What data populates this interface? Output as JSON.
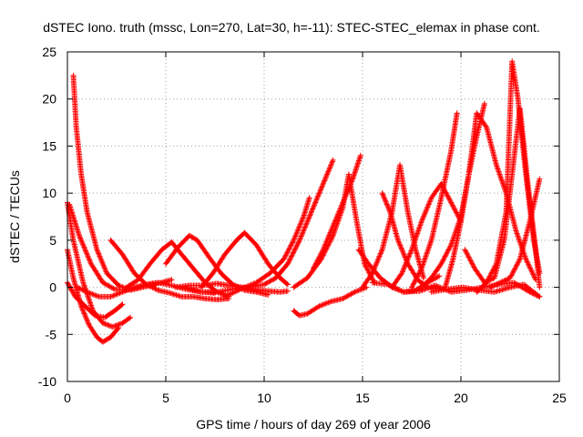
{
  "chart_data": {
    "type": "scatter",
    "title": "dSTEC Iono. truth (mssc, Lon=270, Lat=30, h=-11): STEC-STEC_elemax in phase cont.",
    "xlabel": "GPS time / hours of day 269 of year 2006",
    "ylabel": "dSTEC  / TECUs",
    "xlim": [
      0,
      25
    ],
    "ylim": [
      -10,
      25
    ],
    "xticks": [
      0,
      5,
      10,
      15,
      20,
      25
    ],
    "yticks": [
      -10,
      -5,
      0,
      5,
      10,
      15,
      20,
      25
    ],
    "grid": true,
    "marker": "+",
    "color": "#ff0000",
    "series": [
      {
        "x": [
          0.0,
          0.3,
          0.8,
          1.3,
          1.8,
          2.3,
          2.8,
          3.2
        ],
        "y": [
          9,
          5,
          0.5,
          -2.5,
          -3.8,
          -4.2,
          -3.8,
          -3.2
        ]
      },
      {
        "x": [
          0.0,
          0.3,
          0.7,
          1.1,
          1.5,
          1.8,
          2.2,
          2.6
        ],
        "y": [
          4,
          1,
          -2,
          -4,
          -5.3,
          -5.8,
          -5.3,
          -4.3
        ]
      },
      {
        "x": [
          0.0,
          0.4,
          0.9,
          1.4,
          1.9,
          2.4,
          2.8
        ],
        "y": [
          0.5,
          -1,
          -2,
          -3,
          -3.2,
          -2.5,
          -1.8
        ]
      },
      {
        "x": [
          0.1,
          0.6,
          1.2,
          1.8,
          2.4,
          3.0,
          3.6,
          4.2,
          4.8,
          5.3
        ],
        "y": [
          8.8,
          5.5,
          2.5,
          0.5,
          -0.2,
          -0.3,
          0,
          0.3,
          0.5,
          0.8
        ]
      },
      {
        "x": [
          0.3,
          0.45,
          0.7,
          1.0,
          1.5,
          2.0,
          2.6,
          3.2,
          3.8,
          4.5
        ],
        "y": [
          22.5,
          17,
          12,
          8,
          4,
          1.5,
          0.2,
          -0.3,
          0,
          0.3
        ]
      },
      {
        "x": [
          0.5,
          1.0,
          1.6,
          2.2,
          2.8,
          3.4,
          4.0,
          4.6,
          5.3,
          6.0,
          6.8,
          7.5
        ],
        "y": [
          0,
          -0.5,
          -1,
          -1,
          -0.5,
          0,
          0.3,
          0.5,
          0.2,
          -0.2,
          -0.5,
          -0.6
        ]
      },
      {
        "x": [
          2.2,
          2.8,
          3.4,
          4.0,
          4.6,
          5.2,
          5.8,
          6.4,
          7.0,
          7.6,
          8.2
        ],
        "y": [
          5,
          3.5,
          1.5,
          0.3,
          -0.3,
          -0.6,
          -1,
          -1,
          -1.2,
          -1.3,
          -1.2
        ]
      },
      {
        "x": [
          3.0,
          3.6,
          4.2,
          4.8,
          5.3,
          5.8,
          6.4,
          7.0,
          7.6,
          8.2
        ],
        "y": [
          0,
          0.8,
          2.5,
          4,
          4.8,
          3.5,
          2,
          0.5,
          -0.5,
          -1
        ]
      },
      {
        "x": [
          5.0,
          5.6,
          6.2,
          6.6,
          7.2,
          7.8,
          8.4,
          9.0,
          9.6,
          10.2
        ],
        "y": [
          2.5,
          4.2,
          5.5,
          5,
          3.2,
          1.5,
          0.3,
          -0.3,
          -0.5,
          -0.8
        ]
      },
      {
        "x": [
          5.5,
          6.2,
          6.9,
          7.6,
          8.2,
          8.9,
          9.5,
          10.2,
          10.8,
          11.2
        ],
        "y": [
          0,
          0.2,
          0.2,
          0.4,
          0.2,
          0,
          -0.2,
          -0.4,
          -0.5,
          -0.4
        ]
      },
      {
        "x": [
          6.8,
          7.4,
          8.0,
          8.6,
          9.0,
          9.6,
          10.2,
          10.8,
          11.2
        ],
        "y": [
          0,
          1.5,
          3.5,
          5,
          5.8,
          4.5,
          2.5,
          1,
          0.3
        ]
      },
      {
        "x": [
          6.0,
          6.8,
          7.6,
          8.4,
          9.2,
          10.0,
          10.6,
          11.2,
          11.8,
          12.3,
          12.9,
          13.5
        ],
        "y": [
          0,
          -0.5,
          -0.5,
          -0.2,
          0,
          0.3,
          1,
          2.5,
          5,
          7.5,
          10.5,
          13.5
        ]
      },
      {
        "x": [
          8.0,
          8.8,
          9.6,
          10.3,
          11.0,
          11.5,
          12.0,
          12.3
        ],
        "y": [
          -1,
          -0.2,
          0.5,
          1.5,
          3,
          5,
          7.5,
          9.5
        ]
      },
      {
        "x": [
          11.5,
          11.8,
          12.2,
          12.8,
          13.4,
          14.0,
          14.6,
          15.2
        ],
        "y": [
          -2.5,
          -3,
          -2.8,
          -2,
          -1.5,
          -1.2,
          -0.5,
          0
        ]
      },
      {
        "x": [
          11.5,
          12.2,
          12.9,
          13.5,
          14.0,
          14.3,
          14.7,
          15.1,
          15.6
        ],
        "y": [
          0,
          1,
          3,
          5.5,
          8.5,
          12,
          7,
          2.5,
          0.5
        ]
      },
      {
        "x": [
          12.5,
          13.0,
          13.5,
          14.0,
          14.5,
          14.9
        ],
        "y": [
          2,
          4,
          6.5,
          9,
          11.5,
          14
        ]
      },
      {
        "x": [
          14.8,
          15.3,
          15.9,
          16.5,
          17.1,
          17.7,
          18.3,
          18.9
        ],
        "y": [
          4,
          2.5,
          1,
          0,
          -0.5,
          -0.3,
          0.5,
          1.2
        ]
      },
      {
        "x": [
          15.0,
          15.5,
          16.0,
          16.5,
          16.9,
          17.3,
          17.7,
          18.1
        ],
        "y": [
          0,
          1.5,
          4,
          8,
          13,
          8,
          4,
          1
        ]
      },
      {
        "x": [
          16.0,
          16.4,
          16.8,
          17.3,
          17.8,
          18.3,
          18.8
        ],
        "y": [
          10,
          8,
          5,
          2.5,
          0.8,
          0,
          -0.2
        ]
      },
      {
        "x": [
          16.5,
          17.0,
          17.5,
          18.0,
          18.5,
          19.0,
          19.5,
          20.0
        ],
        "y": [
          0,
          1.5,
          4,
          7,
          9.5,
          11,
          9,
          7
        ]
      },
      {
        "x": [
          17.5,
          18.0,
          18.5,
          19.0,
          19.5,
          19.8
        ],
        "y": [
          0,
          2,
          5,
          9.5,
          14.5,
          18.5
        ]
      },
      {
        "x": [
          18.0,
          18.5,
          19.0,
          19.5,
          20.0,
          20.4,
          20.8,
          21.2
        ],
        "y": [
          0,
          1,
          2.5,
          4.5,
          7.5,
          12,
          16,
          19.5
        ]
      },
      {
        "x": [
          19.2,
          19.6,
          20.0,
          20.4,
          20.8,
          21.3,
          21.8,
          22.3,
          22.8,
          23.3,
          23.8
        ],
        "y": [
          0,
          3,
          7,
          12,
          18.5,
          17,
          13,
          10,
          6,
          3,
          0.8
        ]
      },
      {
        "x": [
          20.2,
          20.7,
          21.2,
          21.7,
          22.2,
          22.6,
          23.0,
          23.4,
          23.8,
          24.0
        ],
        "y": [
          4,
          2,
          0.5,
          1,
          5,
          12,
          19,
          11,
          4,
          0
        ]
      },
      {
        "x": [
          20.8,
          21.3,
          21.8,
          22.3,
          22.6,
          22.9,
          23.3,
          23.7,
          24.0
        ],
        "y": [
          -0.5,
          0.5,
          2.5,
          8,
          24,
          20,
          12,
          5,
          1.5
        ]
      },
      {
        "x": [
          21.5,
          22.0,
          22.5,
          23.0,
          23.5,
          24.0
        ],
        "y": [
          0,
          0.5,
          1,
          3,
          7,
          11.5
        ]
      },
      {
        "x": [
          18.5,
          19.3,
          20.1,
          20.9,
          21.7,
          22.5,
          23.2,
          24.0
        ],
        "y": [
          -0.5,
          -0.2,
          0,
          -0.3,
          -0.5,
          0,
          0.3,
          -1
        ]
      },
      {
        "x": [
          15.5,
          16.3,
          17.1,
          17.9,
          18.7,
          19.5,
          20.3,
          21.1,
          21.9,
          22.7,
          23.5,
          24.0
        ],
        "y": [
          0.5,
          0.3,
          -0.5,
          -0.4,
          0.2,
          -0.5,
          -0.3,
          0,
          0.3,
          0.5,
          -0.5,
          -1
        ]
      }
    ]
  }
}
